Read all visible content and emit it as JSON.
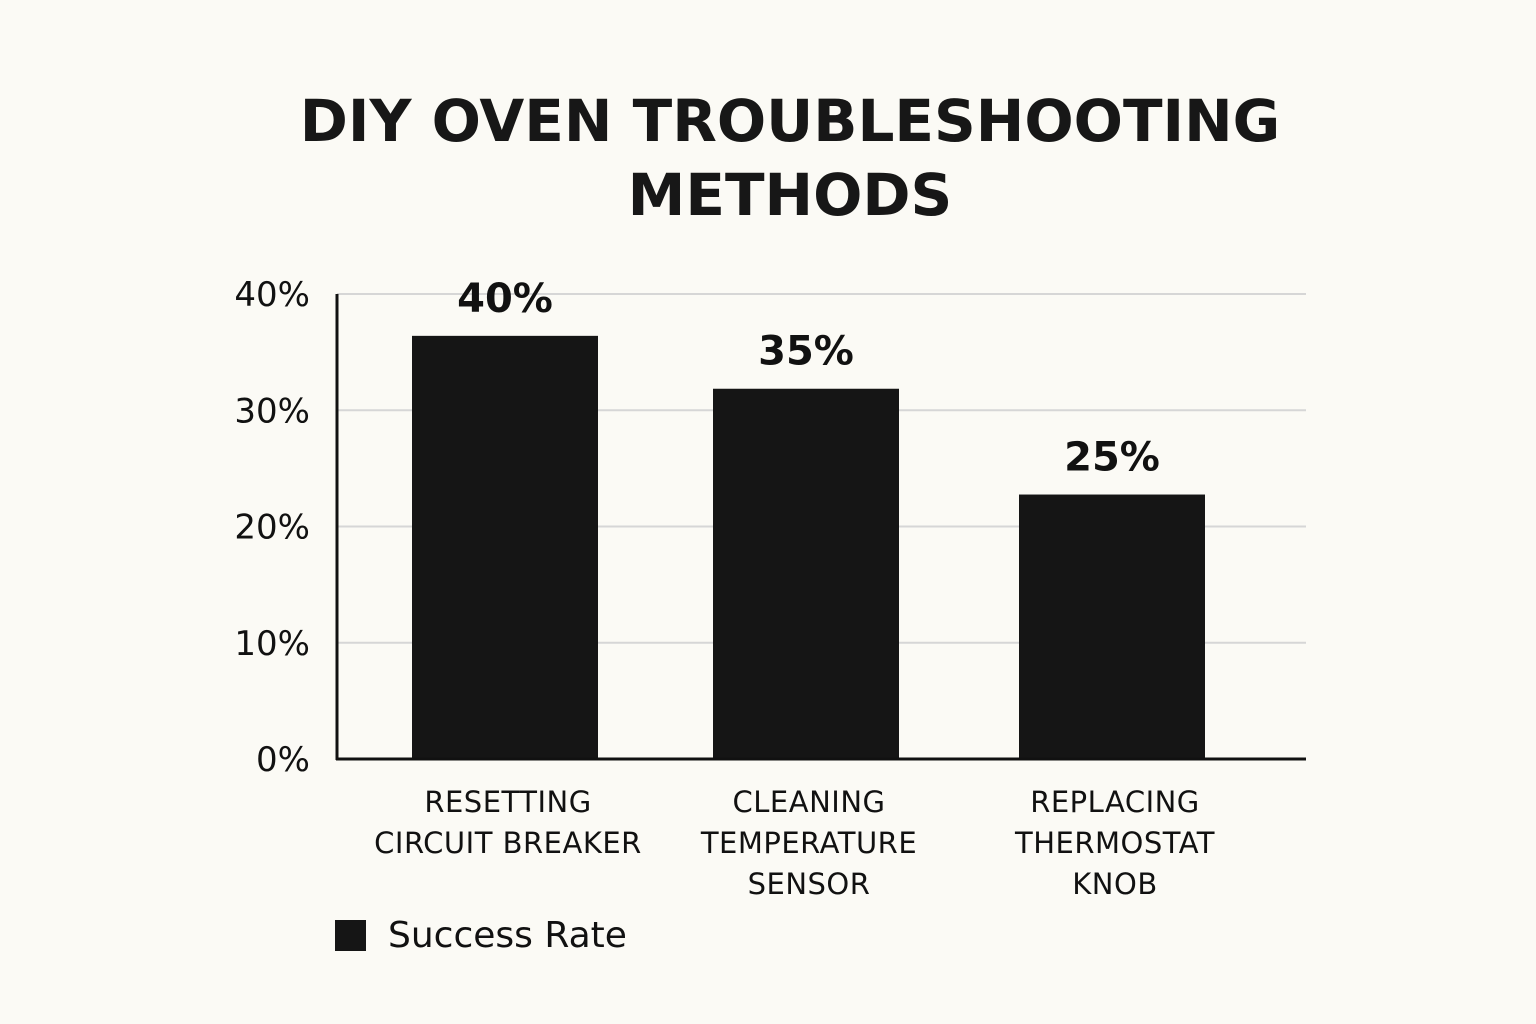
{
  "colors": {
    "background": "#fbfaf5",
    "bar": "#151515",
    "grid": "#d6d6d6",
    "axis": "#111111",
    "text": "#111111"
  },
  "chart_data": {
    "type": "bar",
    "title": "DIY OVEN TROUBLESHOOTING\nMETHODS",
    "categories": [
      "RESETTING\nCIRCUIT BREAKER",
      "CLEANING\nTEMPERATURE\nSENSOR",
      "REPLACING\nTHERMOSTAT\nKNOB"
    ],
    "series": [
      {
        "name": "Success Rate",
        "values": [
          40,
          35,
          25
        ]
      }
    ],
    "data_labels": [
      "40%",
      "35%",
      "25%"
    ],
    "ylim": [
      0,
      40
    ],
    "yticks": [
      0,
      10,
      20,
      30,
      40
    ],
    "ytick_labels": [
      "0%",
      "10%",
      "20%",
      "30%",
      "40%"
    ],
    "xlabel": "",
    "ylabel": "",
    "grid": true,
    "legend": {
      "position": "bottom-left",
      "entries": [
        "Success Rate"
      ]
    }
  }
}
